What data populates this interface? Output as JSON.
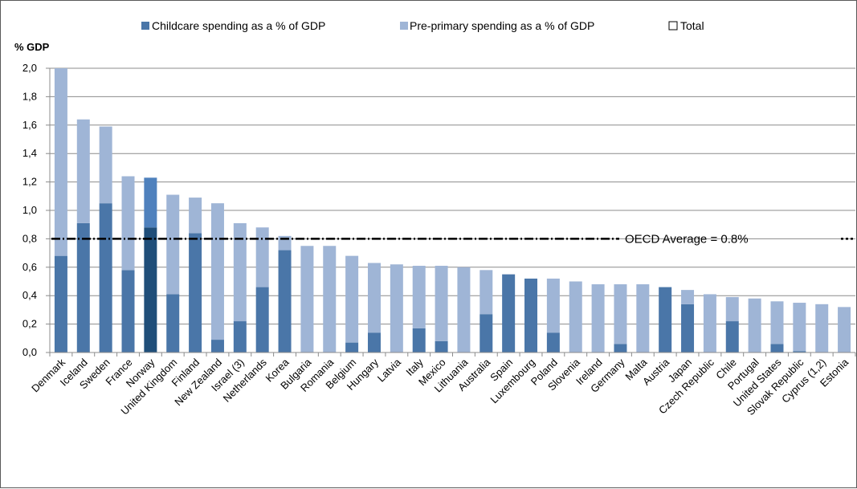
{
  "chart_data": {
    "type": "bar",
    "stacked": true,
    "ylabel": "% GDP",
    "ylim": [
      0,
      2.0
    ],
    "yticks": [
      "0,0",
      "0,2",
      "0,4",
      "0,6",
      "0,8",
      "1,0",
      "1,2",
      "1,4",
      "1,6",
      "1,8",
      "2,0"
    ],
    "grid": true,
    "legend_position": "top",
    "categories": [
      "Denmark",
      "Iceland",
      "Sweden",
      "France",
      "Norway",
      "United Kingdom",
      "Finland",
      "New Zealand",
      "Israel (3)",
      "Netherlands",
      "Korea",
      "Bulgaria",
      "Romania",
      "Belgium",
      "Hungary",
      "Latvia",
      "Italy",
      "Mexico",
      "Lithuania",
      "Australia",
      "Spain",
      "Luxembourg",
      "Poland",
      "Slovenia",
      "Ireland",
      "Germany",
      "Malta",
      "Austria",
      "Japan",
      "Czech Republic",
      "Chile",
      "Portugal",
      "United States",
      "Slovak Republic",
      "Cyprus (1,2)",
      "Estonia"
    ],
    "series": [
      {
        "name": "Childcare spending as a % of GDP",
        "color": "#4a76a8",
        "values": [
          0.68,
          0.91,
          1.05,
          0.58,
          0.88,
          0.41,
          0.84,
          0.09,
          0.22,
          0.46,
          0.72,
          0,
          0,
          0.07,
          0.14,
          0,
          0.17,
          0.08,
          0,
          0.27,
          0.55,
          0.52,
          0.14,
          0,
          0,
          0.06,
          0,
          0.46,
          0.34,
          0,
          0.22,
          0,
          0.06,
          0.01,
          0,
          0
        ]
      },
      {
        "name": "Pre-primary spending as a % of GDP",
        "color": "#9fb5d6",
        "values": [
          1.32,
          0.73,
          0.54,
          0.66,
          0.35,
          0.7,
          0.25,
          0.96,
          0.69,
          0.42,
          0.1,
          0.75,
          0.75,
          0.61,
          0.49,
          0.62,
          0.44,
          0.53,
          0.6,
          0.31,
          0,
          0,
          0.38,
          0.5,
          0.48,
          0.42,
          0.48,
          0,
          0.1,
          0.41,
          0.17,
          0.38,
          0.3,
          0.34,
          0.34,
          0.32
        ]
      },
      {
        "name": "Total",
        "color": "#ffffff"
      }
    ],
    "highlight": {
      "category": "Norway",
      "childcare_color": "#1f4e79",
      "preprimary_color": "#4f81bd"
    },
    "reference_line": {
      "value": 0.8,
      "label": "OECD Average = 0.8%",
      "style": "dash-dot"
    }
  }
}
